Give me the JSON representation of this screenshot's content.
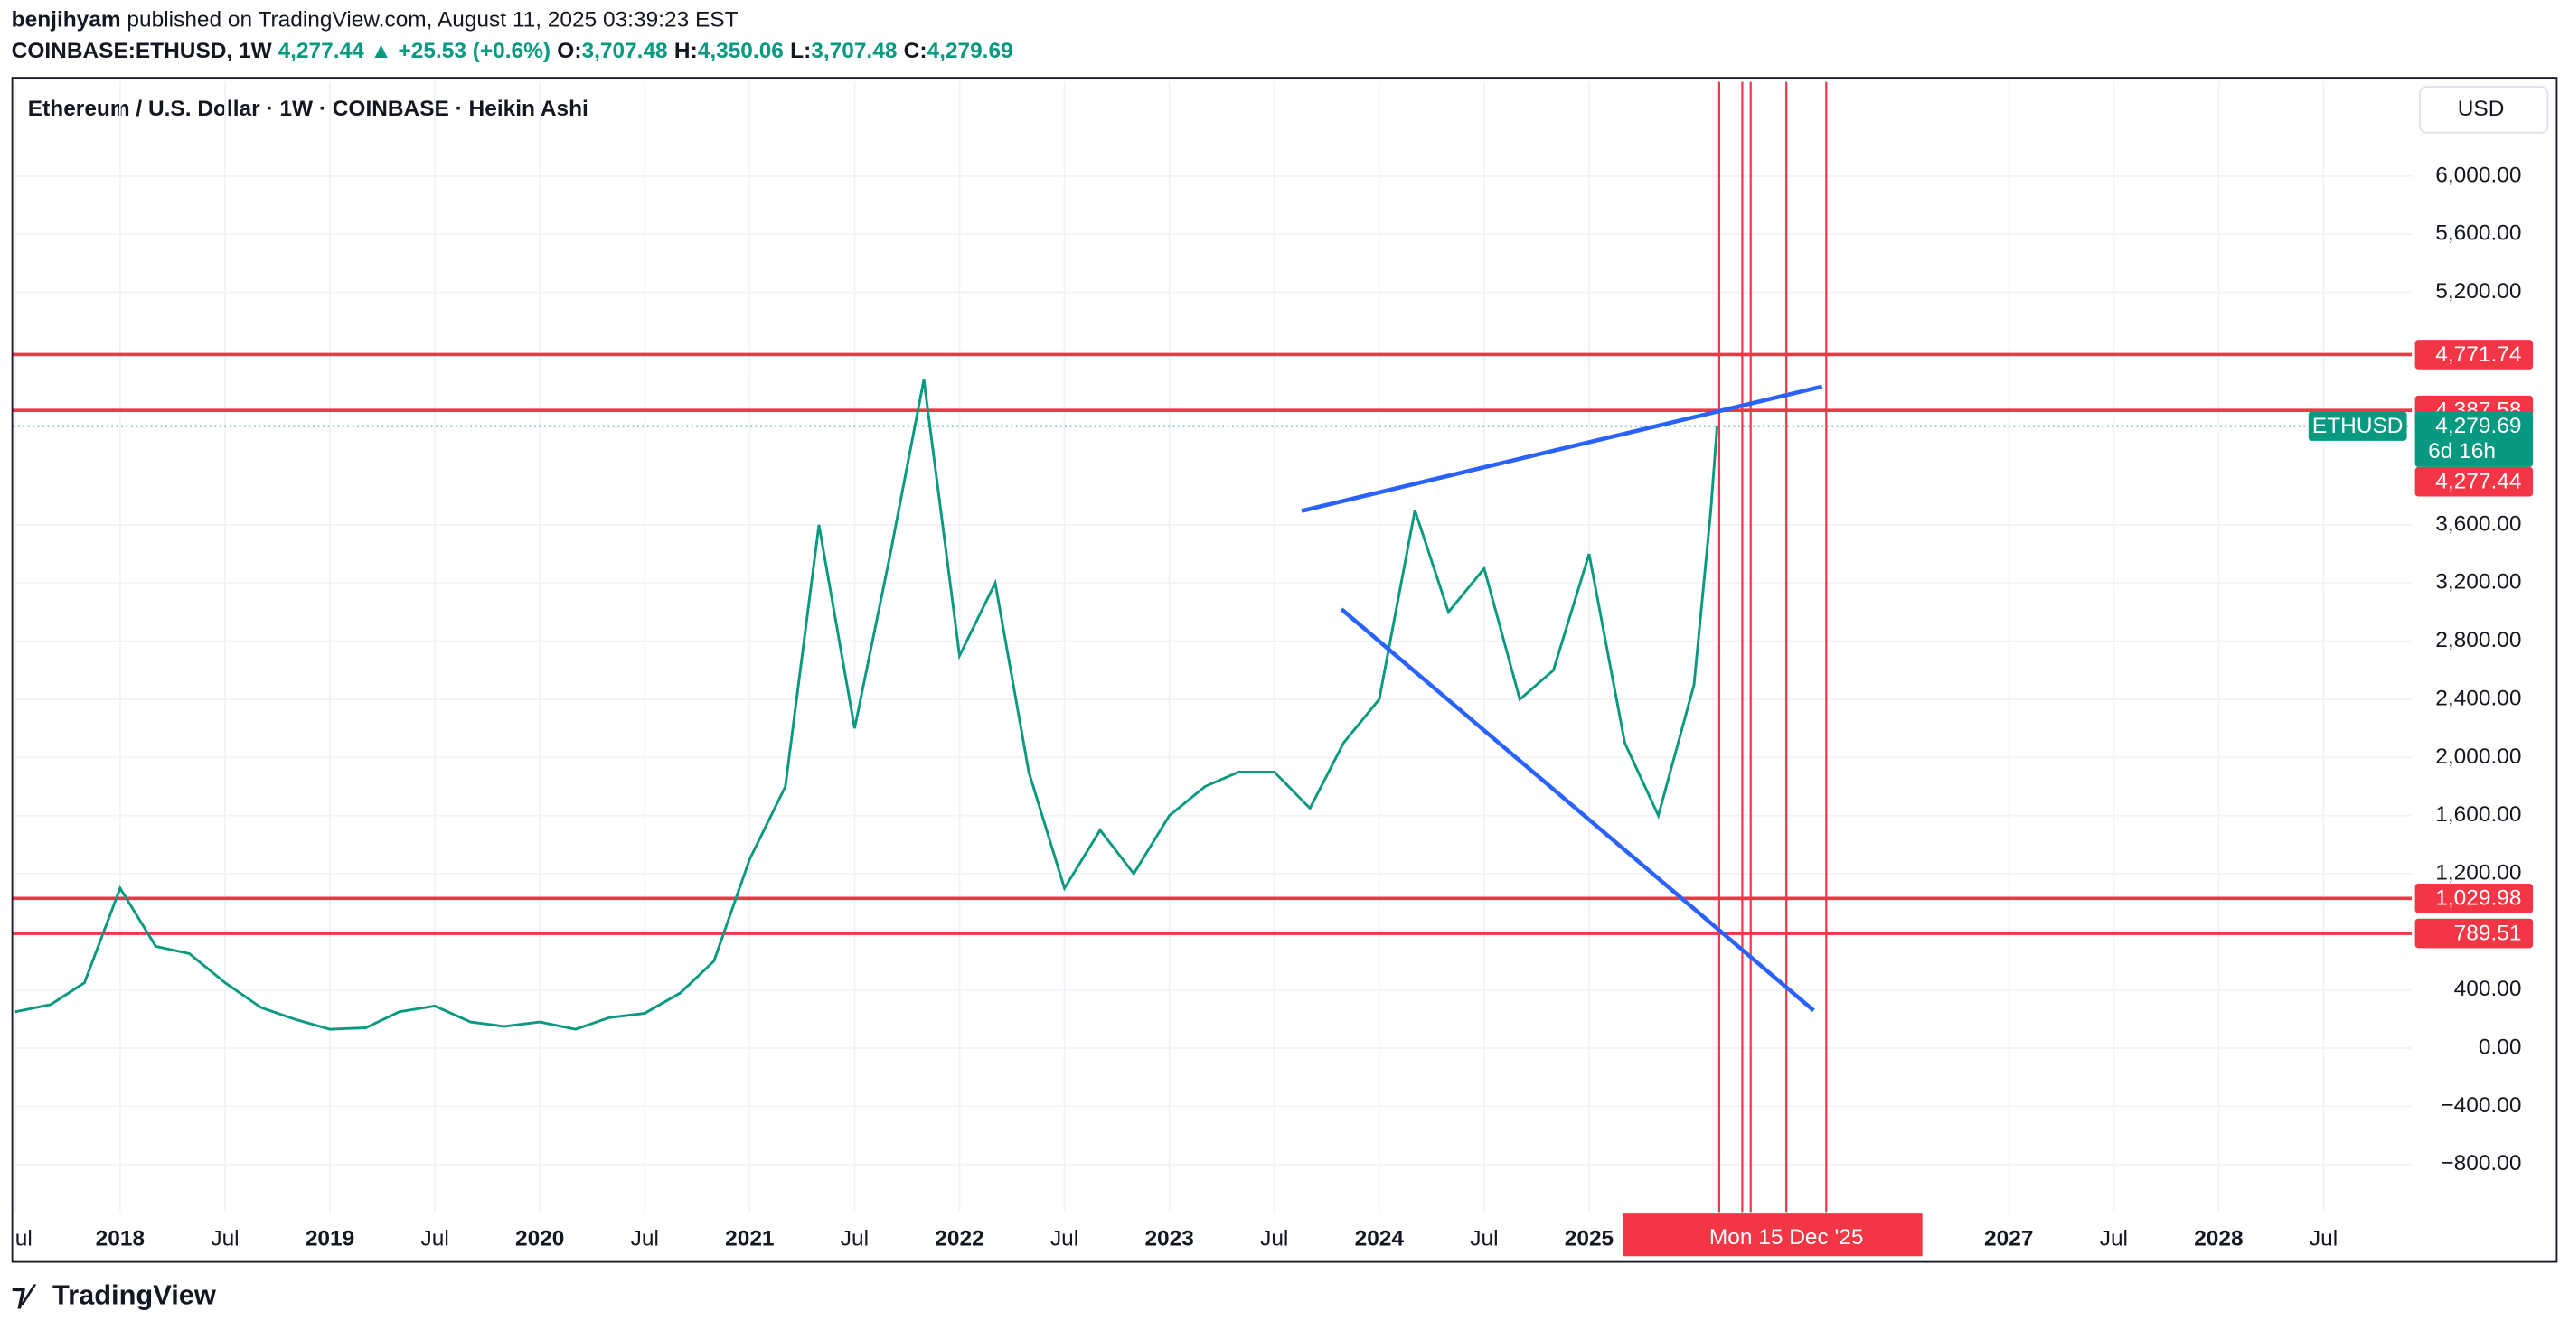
{
  "header": {
    "author": "benjihyam",
    "published": "published on TradingView.com, August 11, 2025 03:39:23 EST",
    "symbol": "COINBASE:ETHUSD, 1W",
    "change": "4,277.44 ▲ +25.53 (+0.6%)",
    "ohlc": [
      {
        "label": "O:",
        "value": "3,707.48"
      },
      {
        "label": "H:",
        "value": "4,350.06"
      },
      {
        "label": "L:",
        "value": "3,707.48"
      },
      {
        "label": "C:",
        "value": "4,279.69"
      }
    ]
  },
  "chart_data": {
    "type": "line",
    "title": "Ethereum / U.S. Dollar · 1W · COINBASE · Heikin Ashi",
    "currency": "USD",
    "color": "#089981",
    "x": [
      2017.5,
      2017.67,
      2017.83,
      2018.0,
      2018.17,
      2018.33,
      2018.5,
      2018.67,
      2018.83,
      2019.0,
      2019.17,
      2019.33,
      2019.5,
      2019.67,
      2019.83,
      2020.0,
      2020.17,
      2020.33,
      2020.5,
      2020.67,
      2020.83,
      2021.0,
      2021.17,
      2021.33,
      2021.5,
      2021.67,
      2021.83,
      2022.0,
      2022.17,
      2022.33,
      2022.5,
      2022.67,
      2022.83,
      2023.0,
      2023.17,
      2023.33,
      2023.5,
      2023.67,
      2023.83,
      2024.0,
      2024.17,
      2024.33,
      2024.5,
      2024.67,
      2024.83,
      2025.0,
      2025.17,
      2025.33,
      2025.5,
      2025.58,
      2025.61
    ],
    "values": [
      250,
      300,
      450,
      1100,
      700,
      650,
      450,
      280,
      200,
      130,
      140,
      250,
      290,
      180,
      150,
      180,
      130,
      210,
      240,
      380,
      600,
      1300,
      1800,
      3600,
      2200,
      3400,
      4600,
      2700,
      3200,
      1900,
      1100,
      1500,
      1200,
      1600,
      1800,
      1900,
      1900,
      1650,
      2100,
      2400,
      3700,
      3000,
      3300,
      2400,
      2600,
      3400,
      2100,
      1600,
      2500,
      3700,
      4280
    ],
    "xlim": [
      2017.49,
      2028.92
    ],
    "xticks": [
      {
        "value": 2017.5,
        "label": "ul"
      },
      {
        "value": 2018,
        "label": "2018"
      },
      {
        "value": 2018.5,
        "label": "Jul"
      },
      {
        "value": 2019,
        "label": "2019"
      },
      {
        "value": 2019.5,
        "label": "Jul"
      },
      {
        "value": 2020,
        "label": "2020"
      },
      {
        "value": 2020.5,
        "label": "Jul"
      },
      {
        "value": 2021,
        "label": "2021"
      },
      {
        "value": 2021.5,
        "label": "Jul"
      },
      {
        "value": 2022,
        "label": "2022"
      },
      {
        "value": 2022.5,
        "label": "Jul"
      },
      {
        "value": 2023,
        "label": "2023"
      },
      {
        "value": 2023.5,
        "label": "Jul"
      },
      {
        "value": 2024,
        "label": "2024"
      },
      {
        "value": 2024.5,
        "label": "Jul"
      },
      {
        "value": 2025,
        "label": "2025"
      },
      {
        "value": 2027,
        "label": "2027"
      },
      {
        "value": 2027.5,
        "label": "Jul"
      },
      {
        "value": 2028,
        "label": "2028"
      },
      {
        "value": 2028.5,
        "label": "Jul"
      }
    ],
    "ylim": [
      -1465,
      6648
    ],
    "yticks": [
      {
        "value": -800,
        "label": "−800.00"
      },
      {
        "value": -400,
        "label": "−400.00"
      },
      {
        "value": 0,
        "label": "0.00"
      },
      {
        "value": 400,
        "label": "400.00"
      },
      {
        "value": 1200,
        "label": "1,200.00"
      },
      {
        "value": 1600,
        "label": "1,600.00"
      },
      {
        "value": 2000,
        "label": "2,000.00"
      },
      {
        "value": 2400,
        "label": "2,400.00"
      },
      {
        "value": 2800,
        "label": "2,800.00"
      },
      {
        "value": 3200,
        "label": "3,200.00"
      },
      {
        "value": 3600,
        "label": "3,600.00"
      },
      {
        "value": 5200,
        "label": "5,200.00"
      },
      {
        "value": 5600,
        "label": "5,600.00"
      },
      {
        "value": 6000,
        "label": "6,000.00"
      }
    ],
    "grid": true,
    "levels": [
      {
        "value": 4771.74,
        "label": "4,771.74"
      },
      {
        "value": 4387.58,
        "label": "4,387.58"
      },
      {
        "value": 1029.98,
        "label": "1,029.98"
      },
      {
        "value": 789.51,
        "label": "789.51"
      }
    ],
    "last": {
      "name": "ETHUSD",
      "value": 4279.69,
      "label": "4,279.69",
      "countdown": "6d 16h"
    },
    "open_price": {
      "value": 4277.44,
      "label": "4,277.44"
    },
    "vlines": [
      2025.62,
      2025.73,
      2025.77,
      2025.94,
      2026.13
    ],
    "crosshair": {
      "value": 2025.94,
      "label": "Mon 15 Dec '25"
    },
    "trendlines": [
      {
        "x": [
          2023.63,
          2026.11
        ],
        "values": [
          3696,
          4552
        ]
      },
      {
        "x": [
          2023.82,
          2026.07
        ],
        "values": [
          3020,
          259
        ]
      }
    ]
  },
  "footer": {
    "brand": "TradingView"
  }
}
